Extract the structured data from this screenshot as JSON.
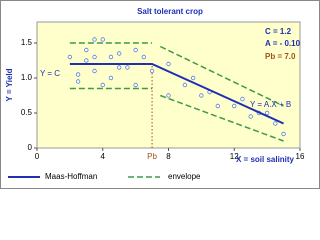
{
  "chart_data": {
    "type": "line",
    "title": "Salt tolerant crop",
    "x_label": "X = soil salinity",
    "y_label": "Y = Yield",
    "annotations": [
      "C = 1.2",
      "A = - 0.10",
      "Pb = 7.0",
      "Y = C",
      "Y = A.X + B",
      "Pb"
    ],
    "xlim": [
      0,
      16
    ],
    "xticks": [
      0,
      4,
      8,
      12,
      16
    ],
    "ylim": [
      0,
      1.8
    ],
    "yticks": [
      0,
      0.5,
      {
        "value": 1,
        "label": "1.0"
      },
      1.5
    ],
    "series": [
      {
        "name": "Maas-Hoffman",
        "color": "#1f2fb4",
        "x": [
          2,
          7,
          15
        ],
        "values": [
          1.2,
          1.2,
          0.35
        ]
      },
      {
        "name": "envelope",
        "color": "#3c9a4a",
        "x": [
          2,
          7,
          null,
          7.5,
          15,
          null,
          2,
          7,
          null,
          7.5,
          15
        ],
        "values": [
          1.5,
          1.5,
          null,
          1.45,
          0.6,
          null,
          0.85,
          0.85,
          null,
          0.75,
          0.1
        ]
      }
    ],
    "points": {
      "color": "#5a7fd0",
      "x": [
        2,
        2.5,
        2.5,
        3,
        3,
        3.5,
        3.5,
        3.5,
        4,
        4,
        4.5,
        4.5,
        5,
        5,
        5.5,
        6,
        6,
        6.5,
        7,
        8,
        8,
        9,
        9.5,
        10,
        10.5,
        11,
        12,
        12.5,
        13,
        13.5,
        14,
        14.5,
        15
      ],
      "y": [
        1.3,
        1.05,
        0.95,
        1.4,
        1.25,
        1.55,
        1.3,
        1.1,
        1.55,
        0.9,
        1.0,
        1.3,
        1.35,
        1.15,
        1.15,
        0.9,
        1.4,
        1.3,
        1.1,
        1.2,
        0.75,
        0.9,
        1.0,
        0.75,
        0.8,
        0.6,
        0.6,
        0.7,
        0.45,
        0.5,
        0.5,
        0.35,
        0.2
      ]
    }
  }
}
